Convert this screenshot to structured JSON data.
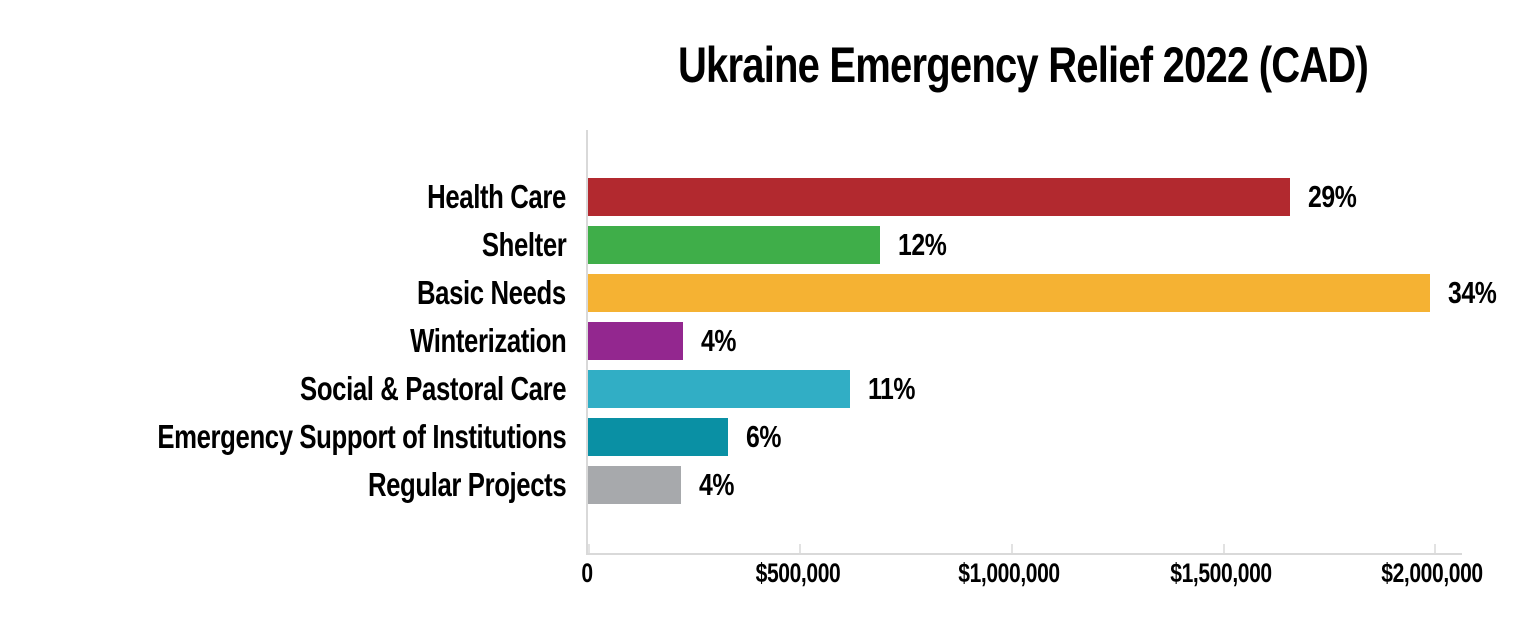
{
  "chart_data": {
    "type": "bar",
    "orientation": "horizontal",
    "title": "Ukraine Emergency Relief 2022 (CAD)",
    "categories": [
      "Health Care",
      "Shelter",
      "Basic Needs",
      "Winterization",
      "Social & Pastoral Care",
      "Emergency Support of Institutions",
      "Regular Projects"
    ],
    "percent_labels": [
      "29%",
      "12%",
      "34%",
      "4%",
      "11%",
      "6%",
      "4%"
    ],
    "values_cad": [
      1660000,
      690000,
      1990000,
      225000,
      620000,
      330000,
      220000
    ],
    "colors": [
      "#b2292f",
      "#3fae49",
      "#f5b233",
      "#93278f",
      "#31aec5",
      "#0a90a4",
      "#a7a9ac"
    ],
    "xlabel": "",
    "ylabel": "",
    "xlim": [
      0,
      2000000
    ],
    "x_tick_values": [
      0,
      500000,
      1000000,
      1500000,
      2000000
    ],
    "x_tick_labels": [
      "0",
      "$500,000",
      "$1,000,000",
      "$1,500,000",
      "$2,000,000"
    ],
    "grid": false,
    "legend": false,
    "axis_color": "#d9d9d9"
  }
}
